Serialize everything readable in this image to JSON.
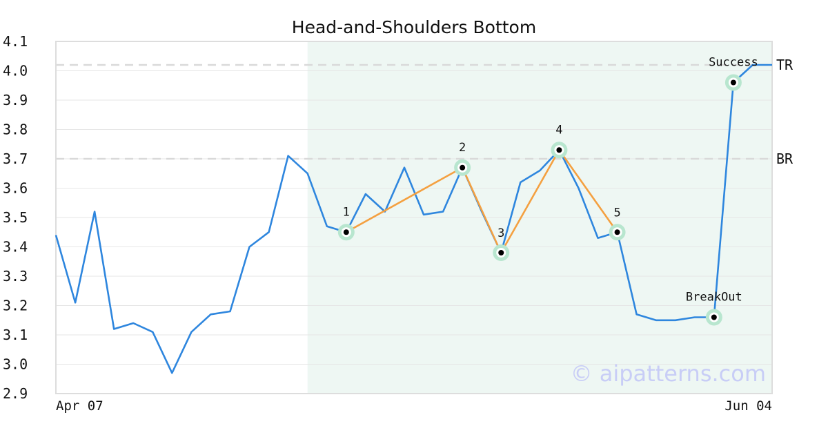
{
  "chart_data": {
    "type": "line",
    "title": "Head-and-Shoulders Bottom",
    "xlabel": "",
    "ylabel": "",
    "ylim": [
      2.9,
      4.1
    ],
    "yticks": [
      "2.9",
      "3.0",
      "3.1",
      "3.2",
      "3.3",
      "3.4",
      "3.5",
      "3.6",
      "3.7",
      "3.8",
      "3.9",
      "4.0",
      "4.1"
    ],
    "x_tick_labels": [
      {
        "index": 0,
        "label": "Apr 07",
        "align": "start"
      },
      {
        "index": 37,
        "label": "Jun 04",
        "align": "end"
      }
    ],
    "grid": true,
    "n_points": 38,
    "series": [
      {
        "color": "#2e86de",
        "values": [
          3.44,
          3.21,
          3.52,
          3.12,
          3.14,
          3.11,
          2.97,
          3.11,
          3.17,
          3.18,
          3.4,
          3.45,
          3.71,
          3.65,
          3.47,
          3.45,
          3.58,
          3.52,
          3.67,
          3.51,
          3.52,
          3.67,
          3.52,
          3.38,
          3.62,
          3.66,
          3.73,
          3.6,
          3.43,
          3.45,
          3.17,
          3.15,
          3.15,
          3.16,
          3.16,
          3.96,
          4.02,
          4.02
        ]
      }
    ],
    "pattern_line": {
      "color": "#f4a040",
      "points": [
        [
          15,
          3.45
        ],
        [
          21,
          3.67
        ],
        [
          23,
          3.38
        ],
        [
          26,
          3.73
        ],
        [
          29,
          3.45
        ]
      ]
    },
    "markers": [
      {
        "index": 15,
        "value": 3.45,
        "label": "1"
      },
      {
        "index": 21,
        "value": 3.67,
        "label": "2"
      },
      {
        "index": 23,
        "value": 3.38,
        "label": "3"
      },
      {
        "index": 26,
        "value": 3.73,
        "label": "4"
      },
      {
        "index": 29,
        "value": 3.45,
        "label": "5"
      },
      {
        "index": 34,
        "value": 3.16,
        "label": "BreakOut"
      },
      {
        "index": 35,
        "value": 3.96,
        "label": "Success"
      }
    ],
    "reference_lines": [
      {
        "value": 4.02,
        "label": "TR"
      },
      {
        "value": 3.7,
        "label": "BR"
      }
    ],
    "highlight_region": {
      "start_index": 13,
      "end_index": 37,
      "color": "#eef7f3"
    },
    "watermark": "© aipatterns.com"
  }
}
